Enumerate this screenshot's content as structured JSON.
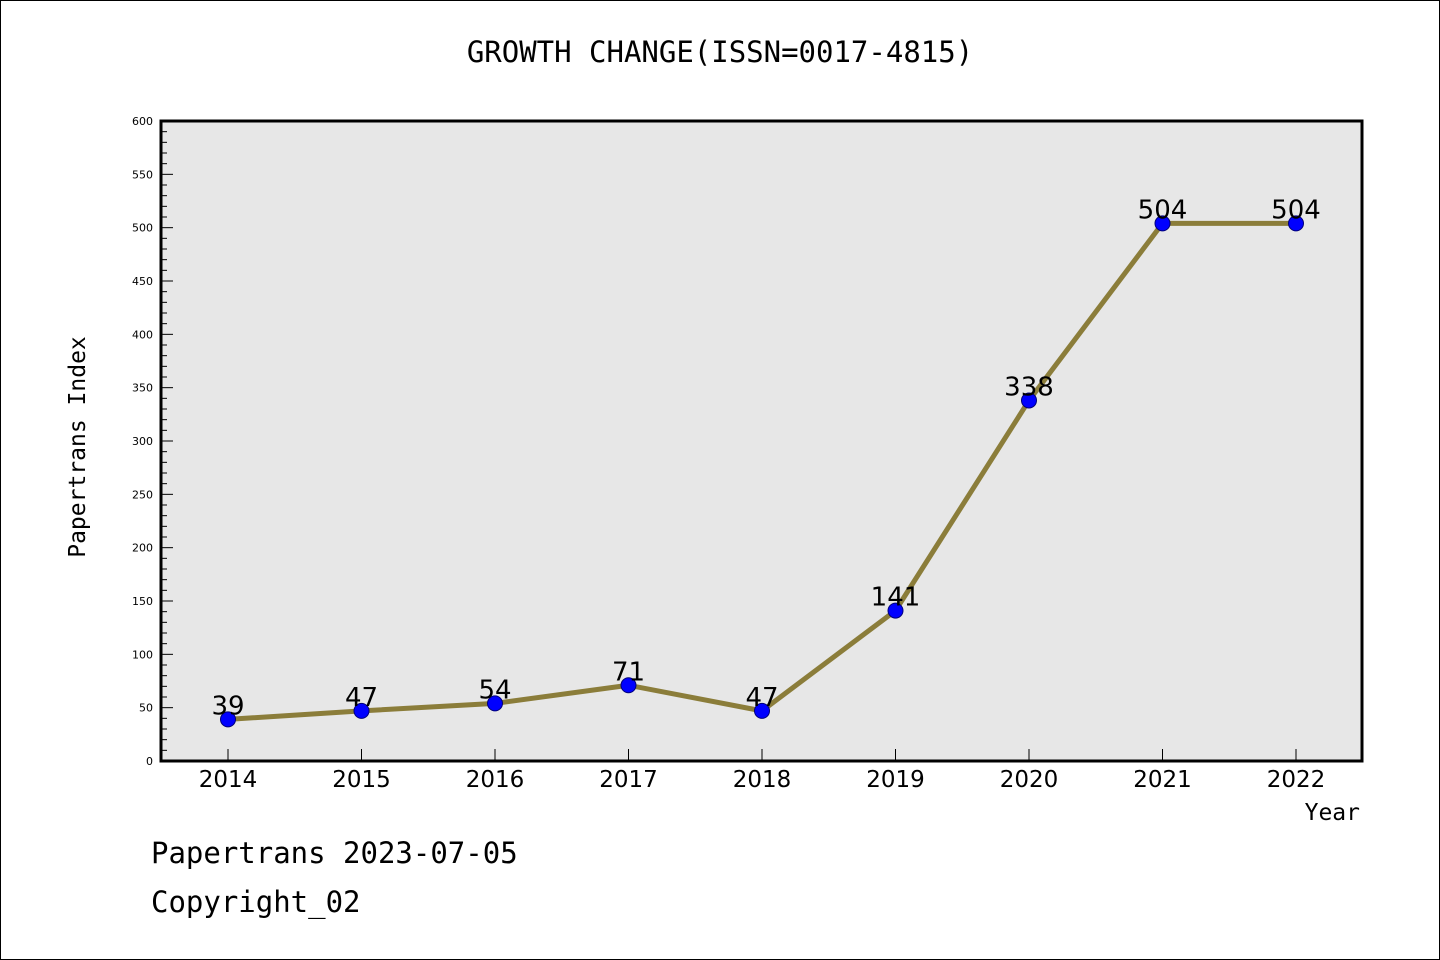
{
  "chart_data": {
    "type": "line",
    "title": "GROWTH CHANGE(ISSN=0017-4815)",
    "xlabel": "Year",
    "ylabel": "Papertrans Index",
    "categories": [
      "2014",
      "2015",
      "2016",
      "2017",
      "2018",
      "2019",
      "2020",
      "2021",
      "2022"
    ],
    "values": [
      39,
      47,
      54,
      71,
      47,
      141,
      338,
      504,
      504
    ],
    "data_labels": [
      "39",
      "47",
      "54",
      "71",
      "47",
      "141",
      "338",
      "504",
      "504"
    ],
    "yticks": [
      "0",
      "50",
      "100",
      "150",
      "200",
      "250",
      "300",
      "350",
      "400",
      "450",
      "500",
      "550",
      "600"
    ],
    "ylim": [
      0,
      600
    ],
    "grid": false,
    "legend": "none",
    "colors": {
      "line": "#8b7d3a",
      "marker": "#0000ff",
      "plot_background": "#e7e7e7"
    }
  },
  "footer": {
    "date_line": "Papertrans 2023-07-05",
    "copyright_line": "Copyright_02"
  }
}
